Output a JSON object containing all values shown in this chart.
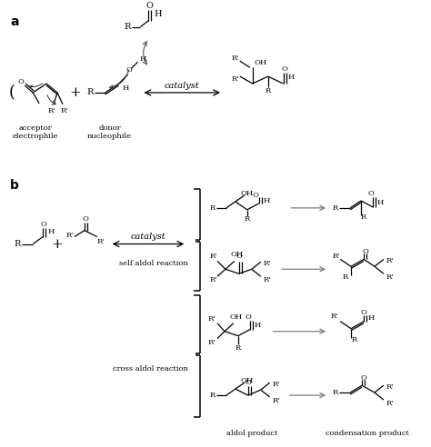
{
  "bg_color": "#ffffff",
  "label_a": "a",
  "label_b": "b",
  "label_catalyst": "catalyst",
  "label_acceptor": "acceptor\nelectrophile",
  "label_donor": "donor\nnucleophile",
  "label_self_aldol": "self aldol reaction",
  "label_cross_aldol": "cross aldol reaction",
  "label_aldol_product": "aldol product",
  "label_condensation": "condensation product",
  "fs": 7.0,
  "fs_small": 6.0,
  "fs_label": 10,
  "fig_width": 4.74,
  "fig_height": 4.92,
  "dpi": 100
}
